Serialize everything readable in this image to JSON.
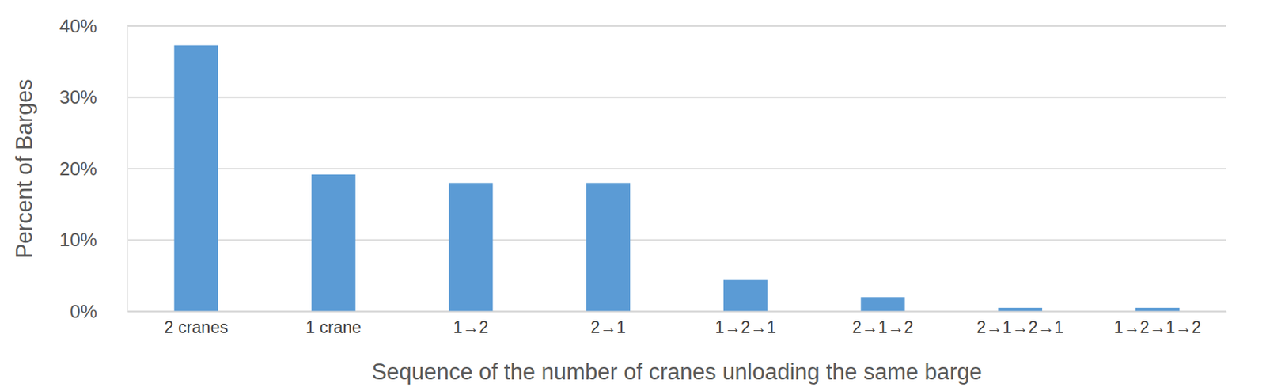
{
  "chart_data": {
    "type": "bar",
    "categories": [
      "2 cranes",
      "1 crane",
      "1→2",
      "2→1",
      "1→2→1",
      "2→1→2",
      "2→1→2→1",
      "1→2→1→2"
    ],
    "values": [
      37.3,
      19.2,
      18.0,
      18.0,
      4.4,
      2.0,
      0.5,
      0.5
    ],
    "color": "#5b9bd5",
    "x_label": "Sequence of the number of cranes unloading the same barge",
    "y_label": "Percent of Barges",
    "ylim": [
      0,
      40
    ],
    "yticks": [
      {
        "value": 0,
        "label": "0%"
      },
      {
        "value": 10,
        "label": "10%"
      },
      {
        "value": 20,
        "label": "20%"
      },
      {
        "value": 30,
        "label": "30%"
      },
      {
        "value": 40,
        "label": "40%"
      }
    ],
    "grid": true
  }
}
